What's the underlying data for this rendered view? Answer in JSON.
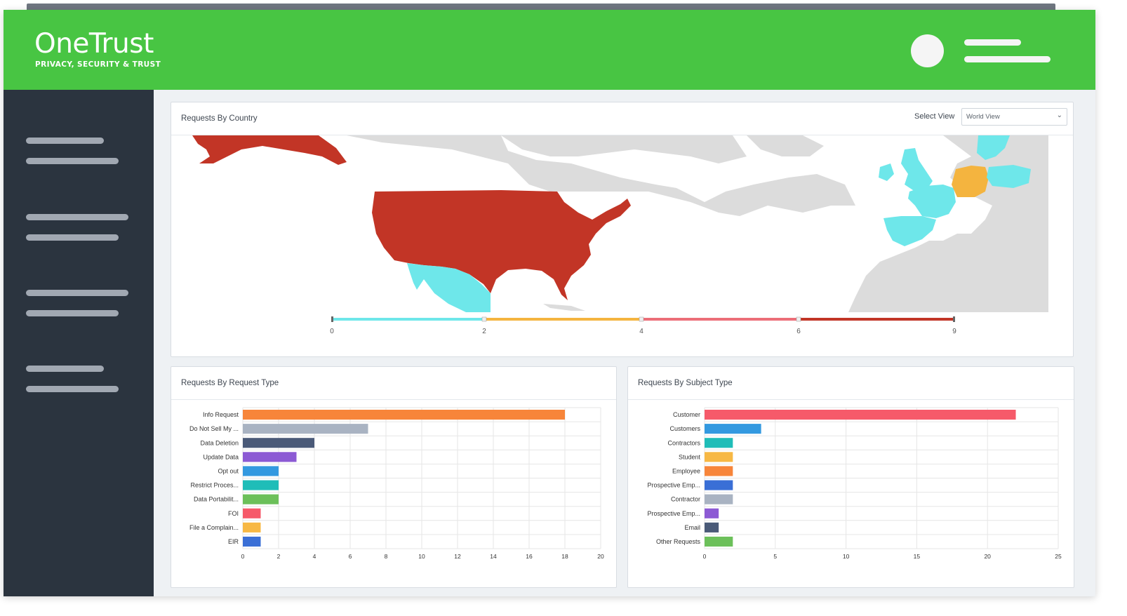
{
  "brand": {
    "name": "OneTrust",
    "tagline": "PRIVACY, SECURITY & TRUST"
  },
  "colors": {
    "header": "#48c543",
    "sidebar": "#2b343f",
    "map_base": "#dcdcdc"
  },
  "country_panel": {
    "title": "Requests By Country",
    "select_label": "Select View",
    "select_value": "World View",
    "legend": {
      "stops": [
        "0",
        "2",
        "4",
        "6",
        "9"
      ],
      "colors": [
        "#6ee7ea",
        "#f4b43f",
        "#ec6e78",
        "#c23526"
      ]
    },
    "regions": [
      {
        "name": "Alaska (United States)",
        "color": "#c23526"
      },
      {
        "name": "United States",
        "color": "#c23526"
      },
      {
        "name": "Mexico",
        "color": "#6ee7ea"
      },
      {
        "name": "United Kingdom",
        "color": "#6ee7ea"
      },
      {
        "name": "Ireland",
        "color": "#6ee7ea"
      },
      {
        "name": "France",
        "color": "#6ee7ea"
      },
      {
        "name": "Spain",
        "color": "#6ee7ea"
      },
      {
        "name": "Germany",
        "color": "#f4b43f"
      },
      {
        "name": "Poland",
        "color": "#6ee7ea"
      },
      {
        "name": "Sweden",
        "color": "#6ee7ea"
      }
    ]
  },
  "chart_data": [
    {
      "type": "bar",
      "orientation": "horizontal",
      "title": "Requests By Request Type",
      "categories": [
        "Info Request",
        "Do Not Sell My ...",
        "Data Deletion",
        "Update Data",
        "Opt out",
        "Restrict Proces...",
        "Data Portabilit...",
        "FOI",
        "File a Complain...",
        "EIR"
      ],
      "values": [
        18,
        7,
        4,
        3,
        2,
        2,
        2,
        1,
        1,
        1
      ],
      "colors": [
        "#f7853a",
        "#a9b3c2",
        "#4a5a78",
        "#8c5ad4",
        "#3399e0",
        "#1fbdb8",
        "#6cc05a",
        "#f65a6a",
        "#f7b844",
        "#3a6fd6"
      ],
      "xlim": [
        0,
        20
      ],
      "xticks": [
        "0",
        "2",
        "4",
        "6",
        "8",
        "10",
        "12",
        "14",
        "16",
        "18",
        "20"
      ],
      "grid": true
    },
    {
      "type": "bar",
      "orientation": "horizontal",
      "title": "Requests By Subject Type",
      "categories": [
        "Customer",
        "Customers",
        "Contractors",
        "Student",
        "Employee",
        "Prospective Emp...",
        "Contractor",
        "Prospective Emp...",
        "Email",
        "Other Requests"
      ],
      "values": [
        22,
        4,
        2,
        2,
        2,
        2,
        2,
        1,
        1,
        2
      ],
      "colors": [
        "#f65a6a",
        "#3399e0",
        "#1fbdb8",
        "#f7b844",
        "#f7853a",
        "#3a6fd6",
        "#a9b3c2",
        "#8c5ad4",
        "#4a5a78",
        "#6cc05a"
      ],
      "xlim": [
        0,
        25
      ],
      "xticks": [
        "0",
        "5",
        "10",
        "15",
        "20",
        "25"
      ],
      "grid": true
    }
  ]
}
